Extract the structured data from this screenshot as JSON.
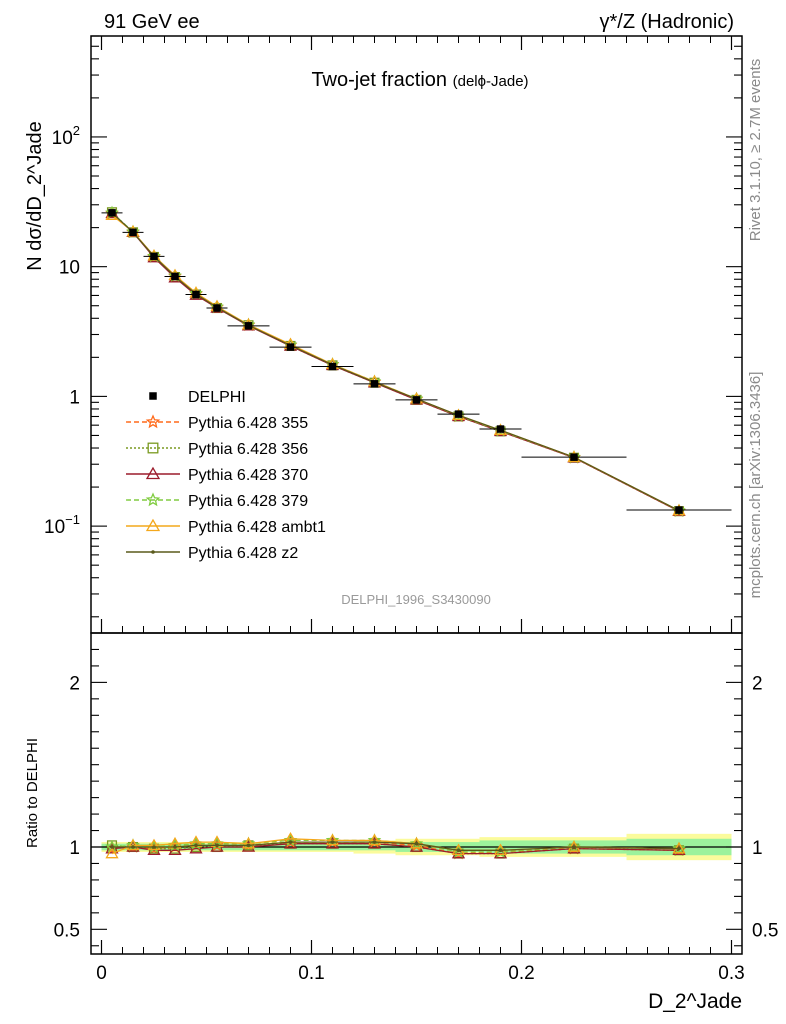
{
  "header": {
    "left": "91 GeV ee",
    "right": "γ*/Z (Hadronic)"
  },
  "side": {
    "rivet": "Rivet 3.1.10, ≥ 2.7M events",
    "mcplots": "mcplots.cern.ch [arXiv:1306.3436]"
  },
  "chart_data": {
    "type": "line",
    "title": "Two-jet fraction",
    "title_sub": "(delϕ-Jade)",
    "analysis_id": "DELPHI_1996_S3430090",
    "xlabel": "D_2^Jade",
    "ylabel": "N dσ/dD_2^Jade",
    "ratio_ylabel": "Ratio to DELPHI",
    "xlim": [
      -0.005,
      0.305
    ],
    "ylim": [
      0.015,
      600
    ],
    "yscale": "log",
    "ratio_ylim": [
      0.35,
      2.3
    ],
    "x_ticks": [
      "0",
      "0.1",
      "0.2",
      "0.3"
    ],
    "y_ticks": [
      {
        "value": 0.1,
        "base": "10",
        "exp": "−1"
      },
      {
        "value": 1,
        "base": "1",
        "exp": ""
      },
      {
        "value": 10,
        "base": "10",
        "exp": ""
      },
      {
        "value": 100,
        "base": "10",
        "exp": "2"
      }
    ],
    "ratio_ticks": [
      "0.5",
      "1",
      "2"
    ],
    "legend_position": "middle-left",
    "x": [
      0.005,
      0.015,
      0.025,
      0.035,
      0.045,
      0.055,
      0.07,
      0.09,
      0.11,
      0.13,
      0.15,
      0.17,
      0.19,
      0.225,
      0.275
    ],
    "x_edges": [
      0,
      0.01,
      0.02,
      0.03,
      0.04,
      0.05,
      0.06,
      0.08,
      0.1,
      0.12,
      0.14,
      0.16,
      0.18,
      0.2,
      0.25,
      0.3
    ],
    "data": {
      "name": "DELPHI",
      "values": [
        26.0,
        18.4,
        12.0,
        8.4,
        6.1,
        4.8,
        3.5,
        2.4,
        1.7,
        1.25,
        0.94,
        0.73,
        0.56,
        0.34,
        0.133
      ],
      "band_inner": [
        0.02,
        0.02,
        0.02,
        0.02,
        0.02,
        0.02,
        0.02,
        0.02,
        0.02,
        0.02,
        0.03,
        0.03,
        0.04,
        0.04,
        0.05
      ],
      "band_outer": [
        0.03,
        0.03,
        0.03,
        0.03,
        0.03,
        0.03,
        0.03,
        0.03,
        0.03,
        0.04,
        0.05,
        0.05,
        0.06,
        0.06,
        0.08
      ]
    },
    "series": [
      {
        "name": "Pythia 6.428 355",
        "color": "#ff6a1a",
        "marker": "star",
        "dash": "5,3",
        "ratio": [
          0.99,
          1.0,
          0.99,
          1.0,
          1.01,
          1.01,
          1.01,
          1.03,
          1.03,
          1.03,
          1.01,
          0.96,
          0.97,
          0.99,
          0.98
        ]
      },
      {
        "name": "Pythia 6.428 356",
        "color": "#7a9a20",
        "marker": "square-open",
        "dash": "2,2",
        "ratio": [
          1.01,
          1.0,
          0.99,
          0.99,
          1.0,
          1.0,
          1.01,
          1.02,
          1.02,
          1.02,
          1.0,
          0.96,
          0.96,
          0.99,
          0.98
        ]
      },
      {
        "name": "Pythia 6.428 370",
        "color": "#9c1c2c",
        "marker": "triangle-open",
        "dash": "",
        "ratio": [
          0.99,
          1.0,
          0.98,
          0.98,
          0.99,
          1.0,
          1.0,
          1.02,
          1.02,
          1.02,
          1.0,
          0.96,
          0.96,
          0.99,
          0.98
        ]
      },
      {
        "name": "Pythia 6.428 379",
        "color": "#80cc40",
        "marker": "star",
        "dash": "5,3",
        "ratio": [
          1.0,
          1.01,
          1.0,
          1.01,
          1.02,
          1.02,
          1.02,
          1.04,
          1.04,
          1.04,
          1.02,
          0.97,
          0.97,
          1.0,
          0.99
        ]
      },
      {
        "name": "Pythia 6.428 ambt1",
        "color": "#f4a81c",
        "marker": "triangle-open",
        "dash": "",
        "ratio": [
          0.96,
          1.01,
          1.01,
          1.02,
          1.03,
          1.03,
          1.02,
          1.05,
          1.04,
          1.04,
          1.02,
          0.98,
          0.98,
          1.0,
          0.99
        ]
      },
      {
        "name": "Pythia 6.428 z2",
        "color": "#5a5a1c",
        "marker": "dot",
        "dash": "",
        "ratio": [
          1.0,
          1.0,
          1.0,
          1.0,
          1.01,
          1.01,
          1.01,
          1.03,
          1.03,
          1.03,
          1.02,
          0.98,
          0.98,
          1.0,
          0.99
        ]
      }
    ]
  }
}
